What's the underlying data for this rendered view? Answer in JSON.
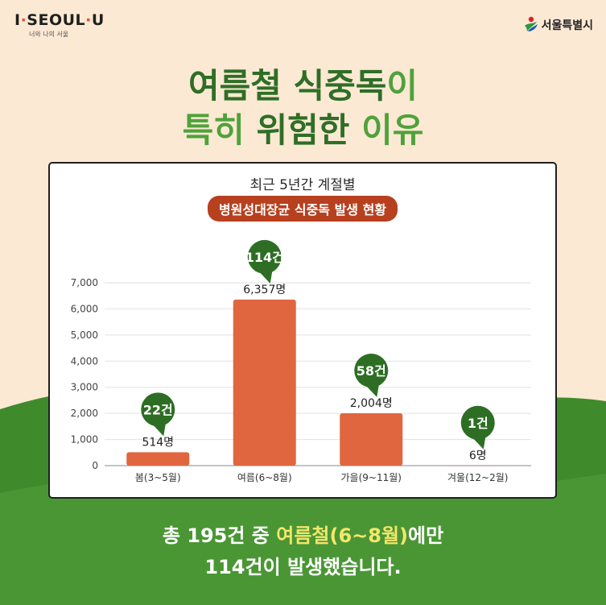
{
  "logo": {
    "main_a": "I",
    "main_b": "SEOUL",
    "main_c": "U",
    "sub": "너와 나의 서울"
  },
  "seoul_city": {
    "label": "서울특별시"
  },
  "headline": {
    "line1_dark": "여름철 식중독",
    "line1_light": "이",
    "line2_light_a": "특히 ",
    "line2_dark": "위험한",
    "line2_light_b": " 이유"
  },
  "chart_data": {
    "type": "bar",
    "title": "최근 5년간 계절별",
    "subtitle": "병원성대장균 식중독 발생 현황",
    "categories": [
      "봄(3~5월)",
      "여름(6~8월)",
      "가을(9~11월)",
      "겨울(12~2월)"
    ],
    "series": [
      {
        "values": [
          514,
          6357,
          2004,
          6
        ],
        "labels": [
          "514명",
          "6,357명",
          "2,004명",
          "6명"
        ]
      }
    ],
    "cases": [
      "22건",
      "114건",
      "58건",
      "1건"
    ],
    "y_ticks": [
      "0",
      "1,000",
      "2,000",
      "3,000",
      "4,000",
      "5,000",
      "6,000",
      "7,000"
    ],
    "ylim": [
      0,
      7000
    ],
    "grid": true,
    "bar_color": "#e0663f",
    "bubble_color": "#2d6e24"
  },
  "footer": {
    "line1_a": "총 195건 중 ",
    "line1_hl": "여름철(6~8월)",
    "line1_b": "에만",
    "line2": "114건이 발생했습니다."
  },
  "colors": {
    "background": "#fbe9d4",
    "green_dark": "#3f8b2c",
    "green_light": "#4c9a35",
    "highlight": "#f4e66c"
  }
}
